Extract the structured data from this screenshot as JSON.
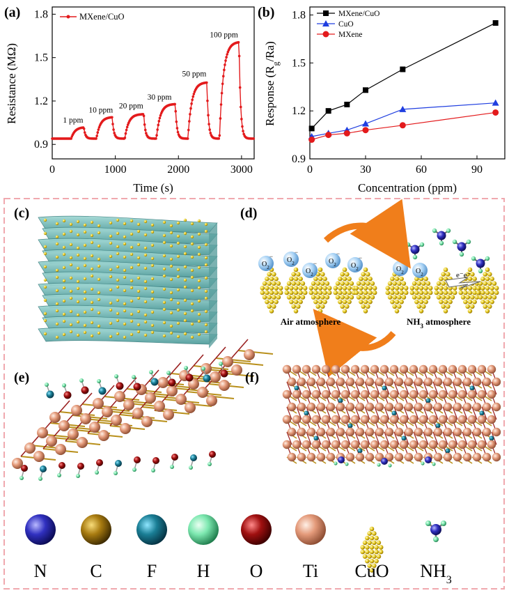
{
  "panels": {
    "a": {
      "label": "(a)"
    },
    "b": {
      "label": "(b)"
    },
    "c": {
      "label": "(c)"
    },
    "d": {
      "label": "(d)",
      "air": "Air atmosphere",
      "nh3": "NH",
      "nh3_sub": "3",
      "nh3_tail": " atmosphere",
      "o2": "O",
      "o2_sub": "2",
      "minus": "−",
      "electron": "e⁻e⁻"
    },
    "e": {
      "label": "(e)"
    },
    "f": {
      "label": "(f)"
    }
  },
  "legend_atoms": [
    {
      "symbol": "N",
      "color": "#2a2aa8"
    },
    {
      "symbol": "C",
      "color": "#a87b10"
    },
    {
      "symbol": "F",
      "color": "#1a7e95"
    },
    {
      "symbol": "H",
      "color": "#7de8b0"
    },
    {
      "symbol": "O",
      "color": "#a01010"
    },
    {
      "symbol": "Ti",
      "color": "#e49a7a"
    },
    {
      "symbol": "CuO",
      "color": "#e8cc20"
    },
    {
      "symbol": "NH",
      "sub": "3",
      "color": "#3a3ab8"
    }
  ],
  "chart_data": [
    {
      "type": "line",
      "panel": "a",
      "xlabel": "Time (s)",
      "ylabel": "Resistance (MΩ)",
      "xlim": [
        0,
        3200
      ],
      "ylim": [
        0.8,
        1.85
      ],
      "xticks": [
        0,
        1000,
        2000,
        3000
      ],
      "yticks": [
        0.9,
        1.2,
        1.5,
        1.8
      ],
      "ytick_labels": [
        "0.9",
        "1.2",
        "1.5",
        "1.8"
      ],
      "legend": "top-left",
      "series": [
        {
          "name": "MXene/CuO",
          "color": "#e31a1c",
          "pulses": [
            {
              "on": 300,
              "off": 500,
              "peak": 1.02
            },
            {
              "on": 700,
              "off": 950,
              "peak": 1.09
            },
            {
              "on": 1150,
              "off": 1450,
              "peak": 1.11
            },
            {
              "on": 1650,
              "off": 1950,
              "peak": 1.18
            },
            {
              "on": 2150,
              "off": 2450,
              "peak": 1.33
            },
            {
              "on": 2650,
              "off": 2960,
              "peak": 1.61
            }
          ],
          "baseline": 0.94
        }
      ],
      "annotations": [
        {
          "text": "1 ppm",
          "x": 330,
          "y": 1.05
        },
        {
          "text": "10 ppm",
          "x": 770,
          "y": 1.12
        },
        {
          "text": "20 ppm",
          "x": 1250,
          "y": 1.15
        },
        {
          "text": "30 ppm",
          "x": 1700,
          "y": 1.21
        },
        {
          "text": "50 ppm",
          "x": 2250,
          "y": 1.37
        },
        {
          "text": "100 ppm",
          "x": 2720,
          "y": 1.64
        }
      ]
    },
    {
      "type": "line",
      "panel": "b",
      "xlabel": "Concentration (ppm)",
      "ylabel": "Response (R",
      "ylabel_sub": "g",
      "ylabel_tail": "/Ra)",
      "xlim": [
        0,
        105
      ],
      "ylim": [
        0.9,
        1.85
      ],
      "xticks": [
        0,
        30,
        60,
        90
      ],
      "yticks": [
        0.9,
        1.2,
        1.5,
        1.8
      ],
      "ytick_labels": [
        "0.9",
        "1.2",
        "1.5",
        "1.8"
      ],
      "legend": "top-left",
      "x": [
        1,
        10,
        20,
        30,
        50,
        100
      ],
      "series": [
        {
          "name": "MXene/CuO",
          "color": "#000000",
          "marker": "square",
          "values": [
            1.09,
            1.2,
            1.24,
            1.33,
            1.46,
            1.75
          ]
        },
        {
          "name": "CuO",
          "color": "#1f3ee0",
          "marker": "triangle",
          "values": [
            1.04,
            1.06,
            1.08,
            1.12,
            1.21,
            1.25
          ]
        },
        {
          "name": "MXene",
          "color": "#e31a1c",
          "marker": "circle",
          "values": [
            1.02,
            1.05,
            1.06,
            1.08,
            1.11,
            1.19
          ]
        }
      ]
    }
  ]
}
